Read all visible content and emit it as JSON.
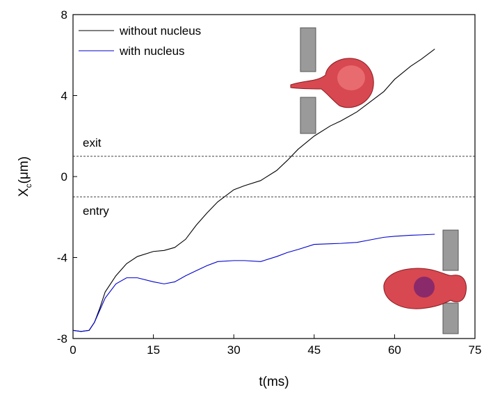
{
  "chart_data": {
    "type": "line",
    "x_label": "t(ms)",
    "y_label": {
      "main": "X",
      "sub": "c",
      "rest": "(μm)"
    },
    "x": [
      0,
      1.5,
      3,
      4,
      5,
      6,
      8,
      10,
      12,
      15,
      17,
      19,
      21,
      23,
      25,
      27,
      30,
      32,
      35,
      38,
      40,
      42,
      45,
      48,
      50,
      53,
      55,
      58,
      60,
      63,
      65,
      67.5
    ],
    "series": [
      {
        "name": "without nucleus",
        "color": "#000000",
        "values": [
          -7.6,
          -7.65,
          -7.6,
          -7.2,
          -6.5,
          -5.7,
          -4.9,
          -4.3,
          -3.95,
          -3.7,
          -3.65,
          -3.5,
          -3.1,
          -2.4,
          -1.8,
          -1.25,
          -0.65,
          -0.45,
          -0.2,
          0.3,
          0.8,
          1.35,
          2.0,
          2.5,
          2.75,
          3.2,
          3.6,
          4.2,
          4.8,
          5.45,
          5.8,
          6.3
        ]
      },
      {
        "name": "with nucleus",
        "color": "#0000cc",
        "values": [
          -7.6,
          -7.65,
          -7.6,
          -7.2,
          -6.6,
          -6.0,
          -5.3,
          -5.0,
          -5.0,
          -5.2,
          -5.3,
          -5.2,
          -4.9,
          -4.65,
          -4.4,
          -4.2,
          -4.15,
          -4.15,
          -4.2,
          -3.95,
          -3.75,
          -3.6,
          -3.35,
          -3.32,
          -3.3,
          -3.25,
          -3.15,
          -3.0,
          -2.95,
          -2.9,
          -2.88,
          -2.85
        ]
      }
    ],
    "reference_lines": [
      {
        "value": 1,
        "label": "exit"
      },
      {
        "value": -1,
        "label": "entry"
      }
    ],
    "xlim": [
      0,
      75
    ],
    "xticks": [
      0,
      15,
      30,
      45,
      60,
      75
    ],
    "ylim": [
      -8,
      8
    ],
    "yticks": [
      -8,
      -4,
      0,
      4,
      8
    ],
    "legend": "upper left"
  }
}
